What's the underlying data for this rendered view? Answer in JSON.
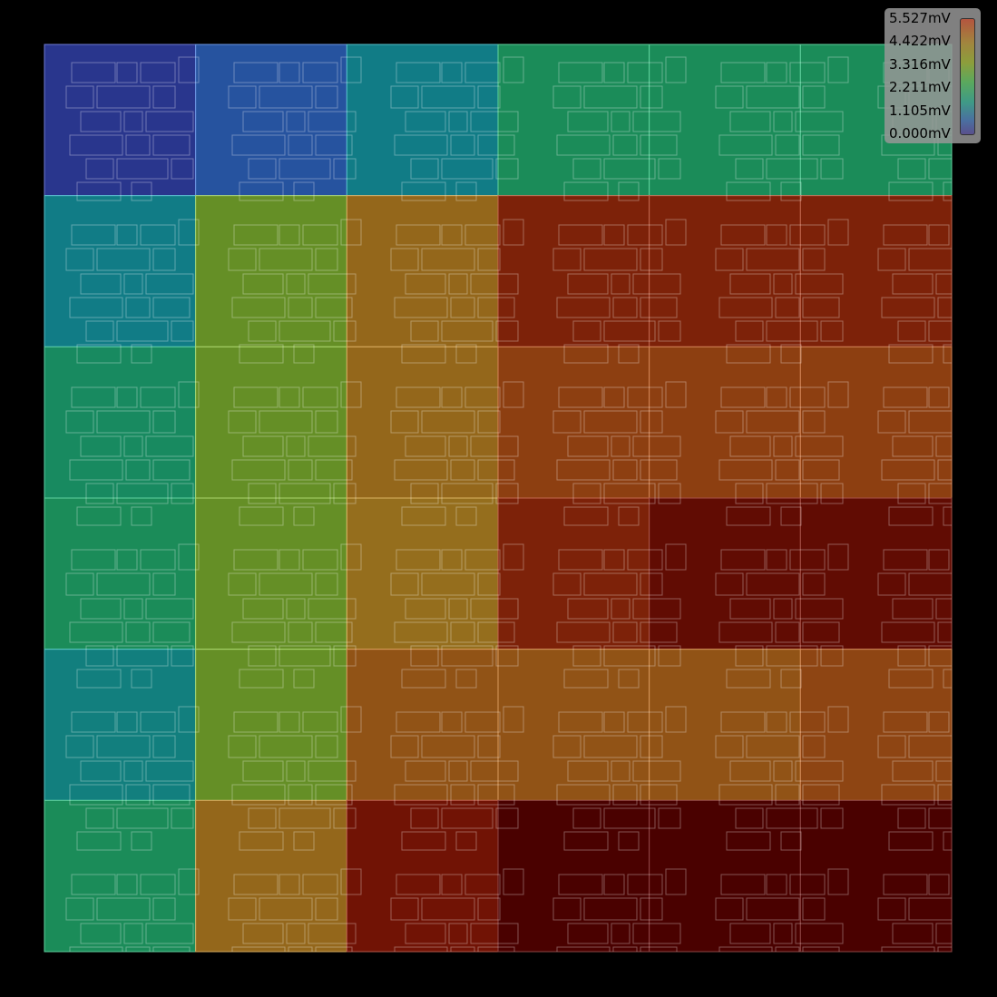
{
  "chart_data": {
    "type": "heatmap",
    "title": "",
    "unit": "mV",
    "rows": 6,
    "cols": 6,
    "grid": true,
    "legend_placement": "top-right",
    "colorbar": {
      "min": 0.0,
      "max": 5.527,
      "tick_labels": [
        "5.527mV",
        "4.422mV",
        "3.316mV",
        "2.211mV",
        "1.105mV",
        "0.000mV"
      ]
    },
    "values": [
      [
        0.2,
        0.6,
        1.3,
        1.9,
        1.9,
        1.9
      ],
      [
        1.3,
        2.8,
        3.6,
        4.7,
        4.7,
        4.7
      ],
      [
        1.8,
        2.8,
        3.6,
        4.2,
        4.2,
        4.2
      ],
      [
        1.9,
        2.8,
        3.5,
        4.7,
        5.2,
        5.2
      ],
      [
        1.4,
        2.8,
        3.9,
        3.9,
        3.9,
        4.1
      ],
      [
        1.9,
        3.6,
        5.0,
        5.5,
        5.5,
        5.5
      ]
    ]
  }
}
